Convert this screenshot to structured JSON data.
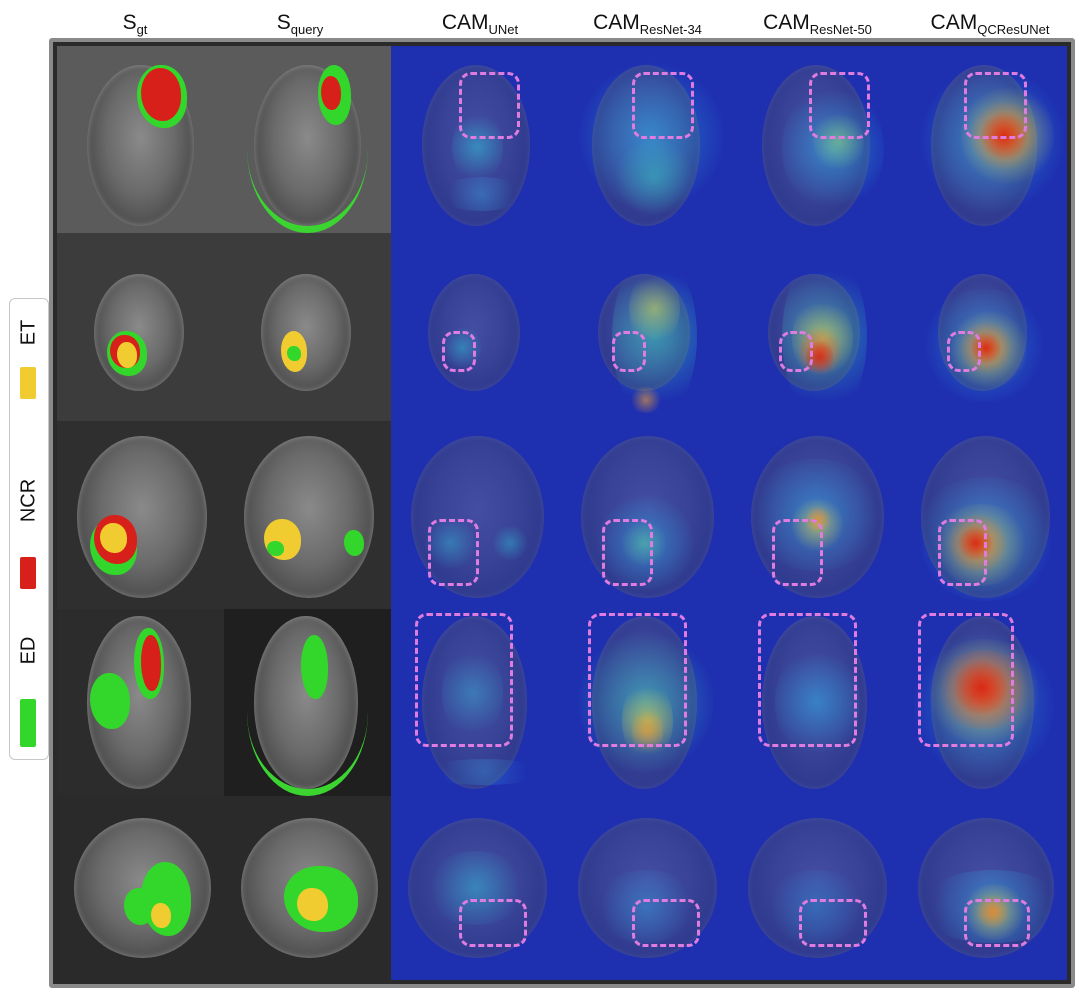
{
  "columns": [
    {
      "main": "S",
      "sub": "gt"
    },
    {
      "main": "S",
      "sub": "query"
    },
    {
      "main": "CAM",
      "sub": "UNet"
    },
    {
      "main": "CAM",
      "sub": "ResNet-34"
    },
    {
      "main": "CAM",
      "sub": "ResNet-50"
    },
    {
      "main": "CAM",
      "sub": "QCResUNet"
    }
  ],
  "legend": [
    {
      "label": "ET",
      "color": "#f0cc30"
    },
    {
      "label": "NCR",
      "color": "#d8201a"
    },
    {
      "label": "ED",
      "color": "#33d62a"
    }
  ],
  "colors": {
    "frame_border": "#8a8a8a",
    "roi_box": "#e07be0",
    "cam_background": "#1e2fb0"
  }
}
